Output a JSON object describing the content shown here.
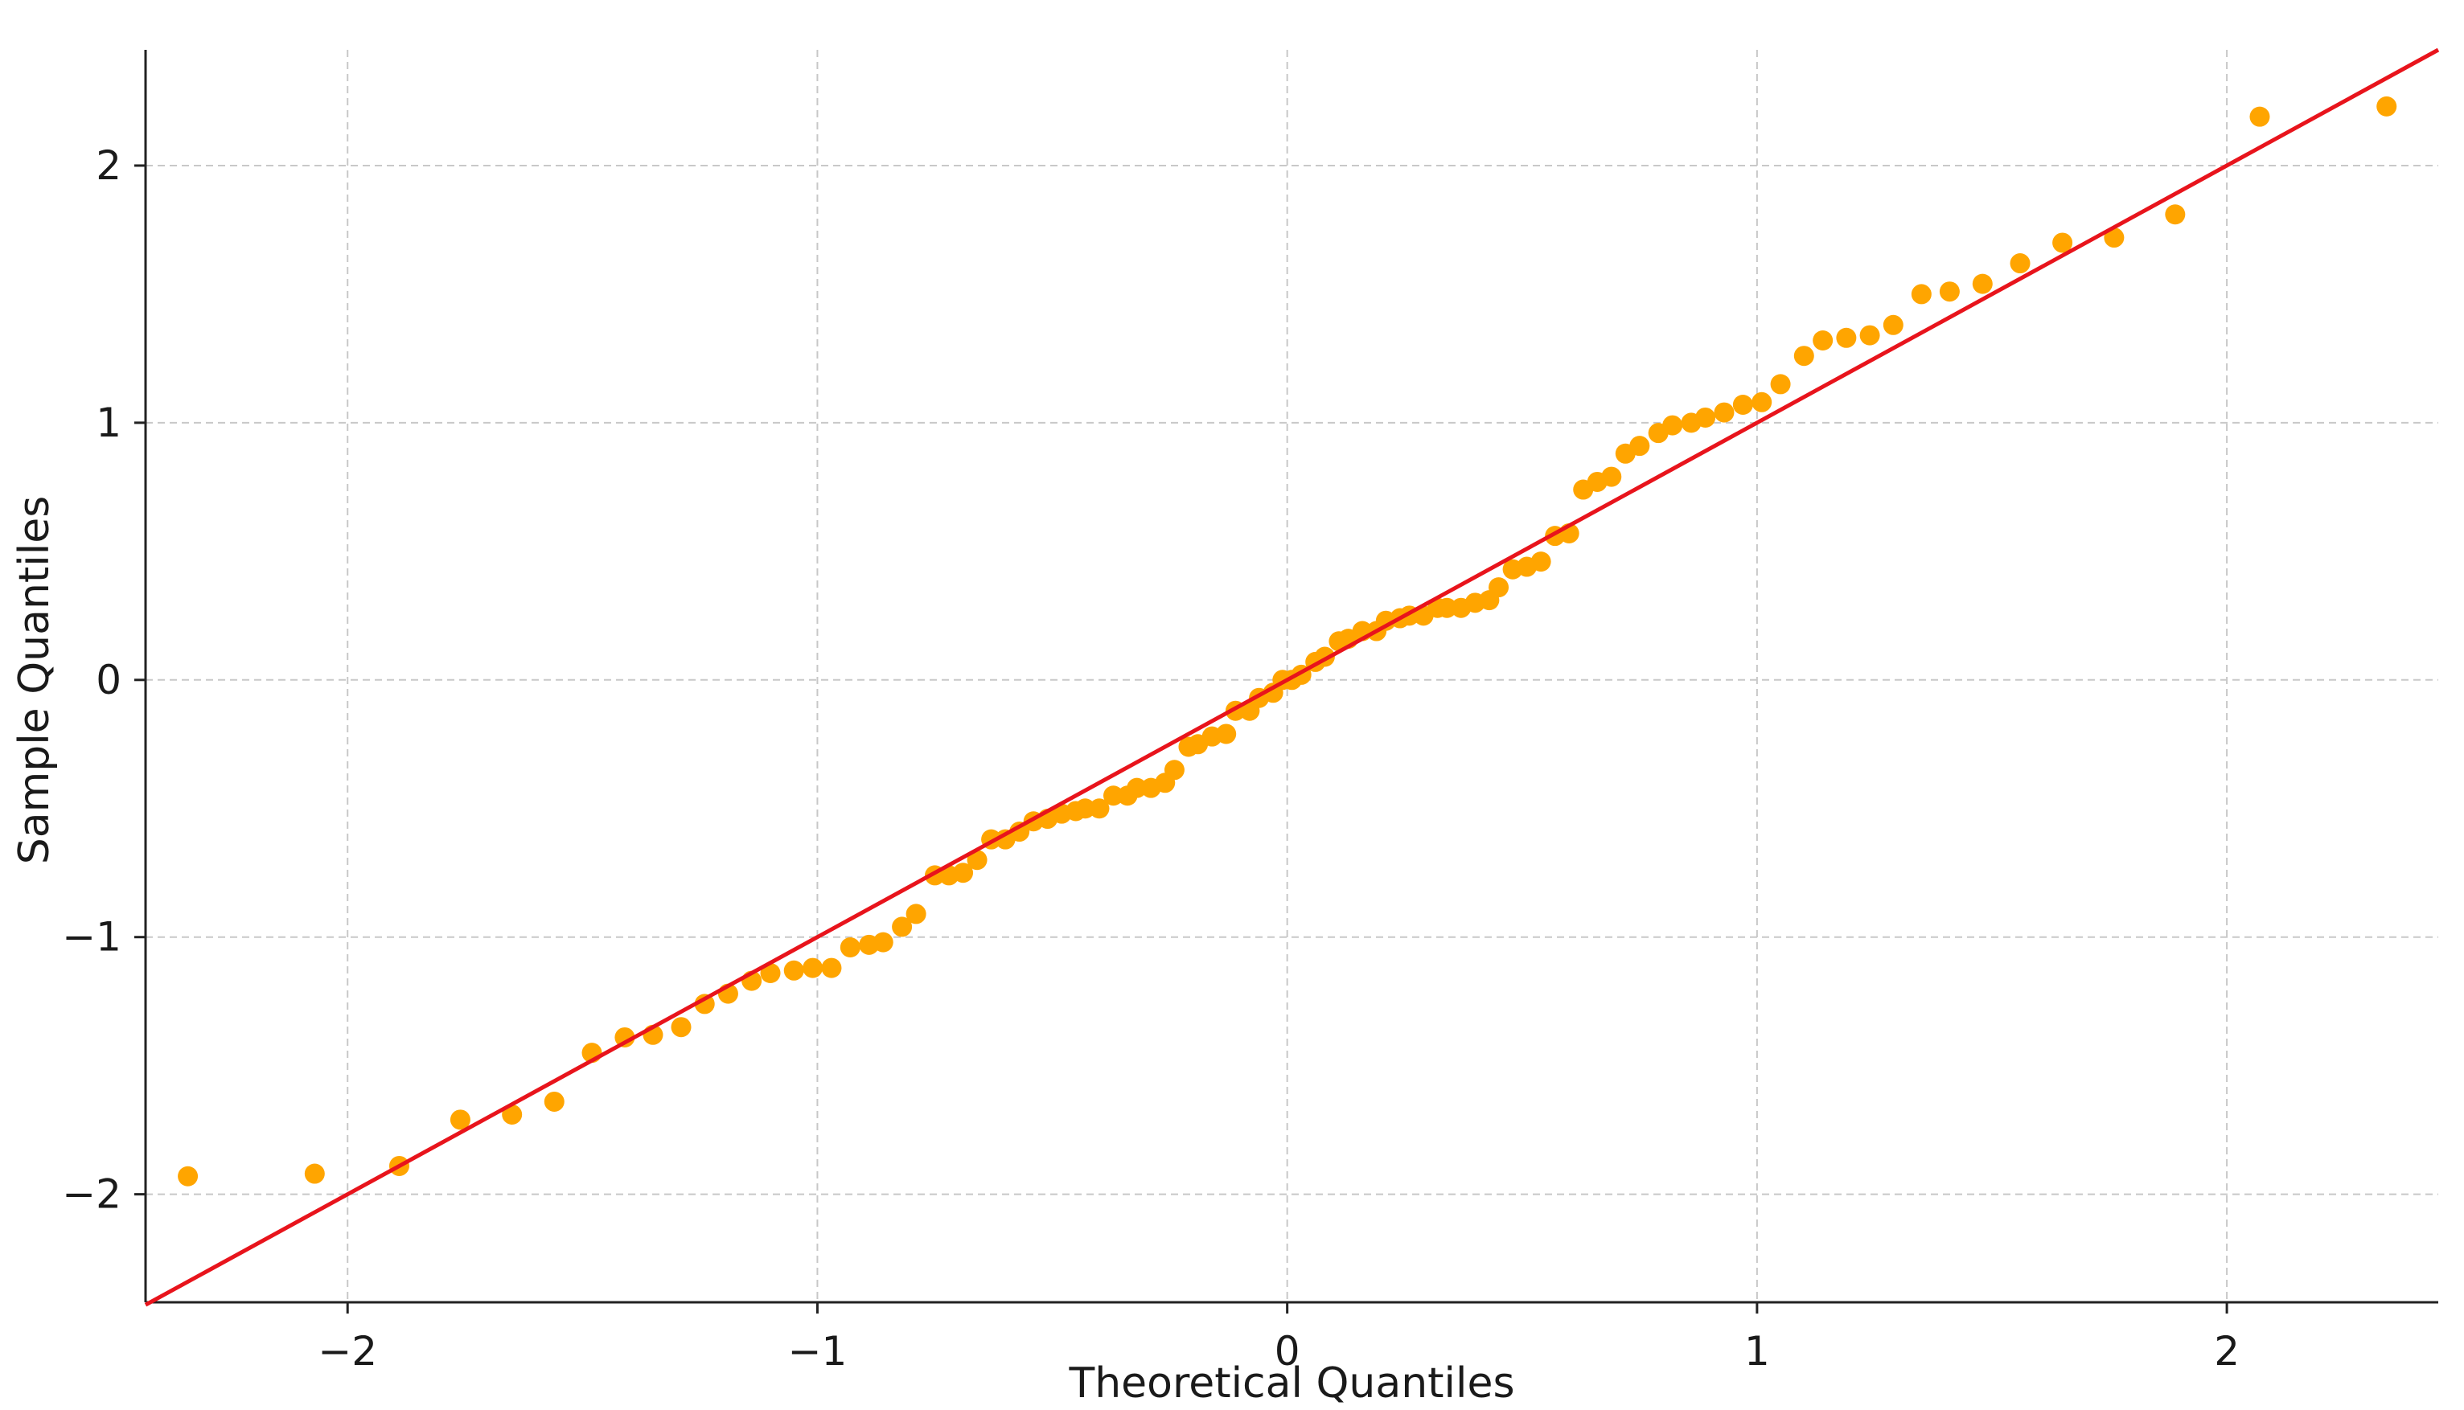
{
  "chart_data": {
    "type": "scatter",
    "title": "",
    "xlabel": "Theoretical Quantiles",
    "ylabel": "Sample Quantiles",
    "xlim": [
      -2.43,
      2.45
    ],
    "ylim": [
      -2.42,
      2.45
    ],
    "xticks": [
      -2,
      -1,
      0,
      1,
      2
    ],
    "yticks": [
      -2,
      -1,
      0,
      1,
      2
    ],
    "xtick_labels": [
      "−2",
      "−1",
      "0",
      "1",
      "2"
    ],
    "ytick_labels": [
      "−2",
      "−1",
      "0",
      "1",
      "2"
    ],
    "grid": true,
    "colors": {
      "points": "#FFA500",
      "reference_line": "#E8141C",
      "grid": "#c8c8c8",
      "axis": "#222222"
    },
    "reference_line": {
      "x": [
        -2.43,
        2.45
      ],
      "y": [
        -2.43,
        2.45
      ]
    },
    "series": [
      {
        "x": [
          -2.34,
          -2.07,
          -1.89,
          -1.76,
          -1.65,
          -1.56,
          -1.48,
          -1.41,
          -1.35,
          -1.29,
          -1.24,
          -1.19,
          -1.14,
          -1.1,
          -1.05,
          -1.01,
          -0.97,
          -0.93,
          -0.89,
          -0.86,
          -0.82,
          -0.79,
          -0.75,
          -0.72,
          -0.69,
          -0.66,
          -0.63,
          -0.6,
          -0.57,
          -0.54,
          -0.51,
          -0.48,
          -0.45,
          -0.43,
          -0.4,
          -0.37,
          -0.34,
          -0.32,
          -0.29,
          -0.26,
          -0.24,
          -0.21,
          -0.19,
          -0.16,
          -0.13,
          -0.11,
          -0.08,
          -0.06,
          -0.03,
          -0.01,
          0.01,
          0.03,
          0.06,
          0.08,
          0.11,
          0.13,
          0.16,
          0.19,
          0.21,
          0.24,
          0.26,
          0.29,
          0.32,
          0.34,
          0.37,
          0.4,
          0.43,
          0.45,
          0.48,
          0.51,
          0.54,
          0.57,
          0.6,
          0.63,
          0.66,
          0.69,
          0.72,
          0.75,
          0.79,
          0.82,
          0.86,
          0.89,
          0.93,
          0.97,
          1.01,
          1.05,
          1.1,
          1.14,
          1.19,
          1.24,
          1.29,
          1.35,
          1.41,
          1.48,
          1.56,
          1.65,
          1.76,
          1.89,
          2.07,
          2.34
        ],
        "y": [
          -1.93,
          -1.92,
          -1.89,
          -1.71,
          -1.69,
          -1.64,
          -1.45,
          -1.39,
          -1.38,
          -1.35,
          -1.26,
          -1.22,
          -1.17,
          -1.14,
          -1.13,
          -1.12,
          -1.12,
          -1.04,
          -1.03,
          -1.02,
          -0.96,
          -0.91,
          -0.76,
          -0.76,
          -0.75,
          -0.7,
          -0.62,
          -0.62,
          -0.59,
          -0.55,
          -0.54,
          -0.52,
          -0.51,
          -0.5,
          -0.5,
          -0.45,
          -0.45,
          -0.42,
          -0.42,
          -0.4,
          -0.35,
          -0.26,
          -0.25,
          -0.22,
          -0.21,
          -0.12,
          -0.12,
          -0.07,
          -0.05,
          0.0,
          0.0,
          0.02,
          0.07,
          0.09,
          0.15,
          0.16,
          0.19,
          0.19,
          0.23,
          0.24,
          0.25,
          0.25,
          0.28,
          0.28,
          0.28,
          0.3,
          0.31,
          0.36,
          0.43,
          0.44,
          0.46,
          0.56,
          0.57,
          0.74,
          0.77,
          0.79,
          0.88,
          0.91,
          0.96,
          0.99,
          1.0,
          1.02,
          1.04,
          1.07,
          1.08,
          1.15,
          1.26,
          1.32,
          1.33,
          1.34,
          1.38,
          1.5,
          1.51,
          1.54,
          1.62,
          1.7,
          1.72,
          1.81,
          2.19,
          2.23
        ]
      }
    ]
  }
}
